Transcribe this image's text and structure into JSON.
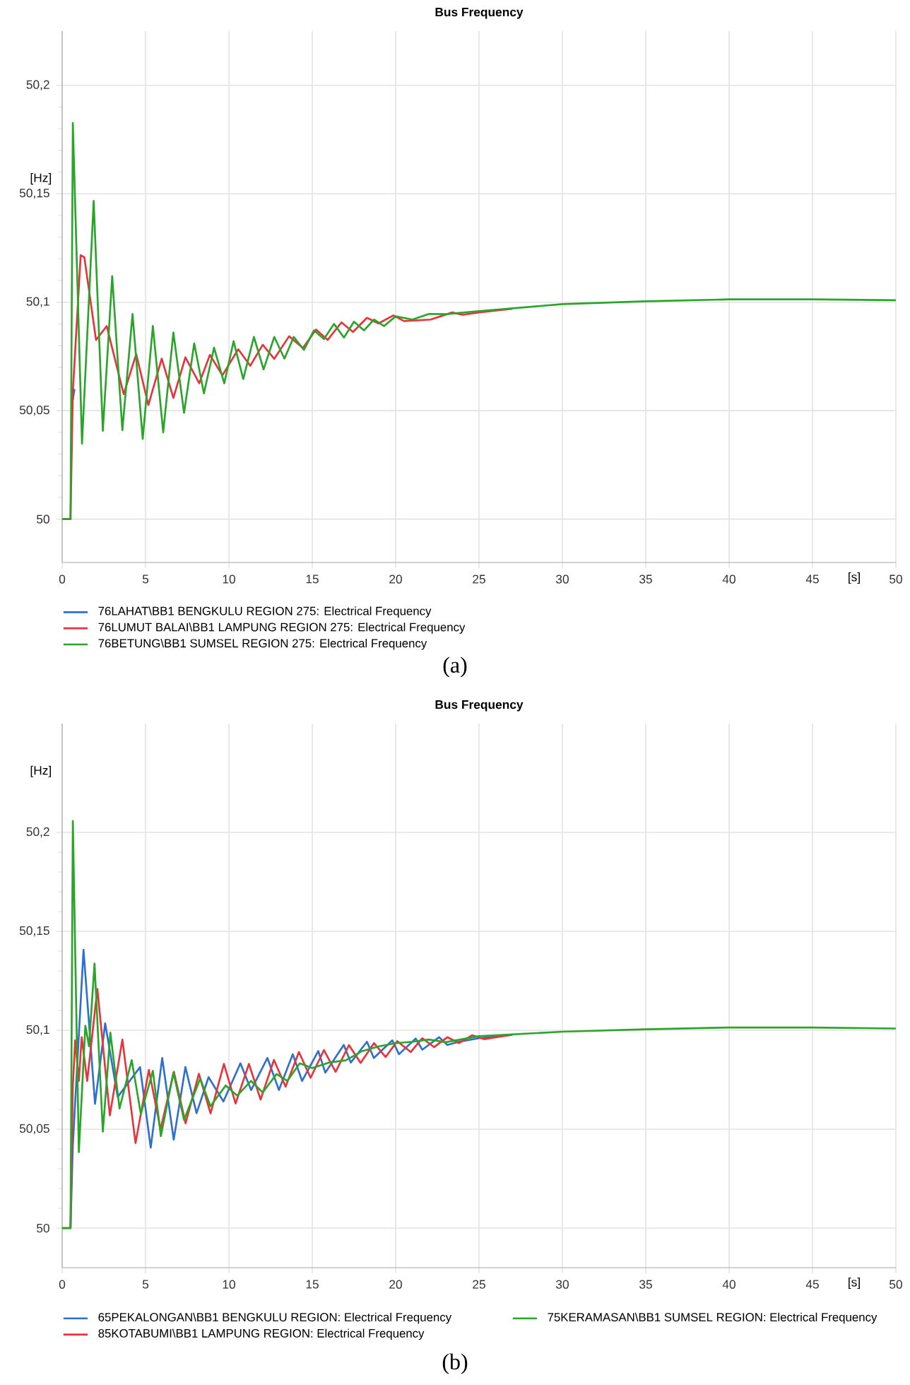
{
  "chart_data": [
    {
      "type": "line",
      "title": "Bus Frequency",
      "xlabel": "[s]",
      "ylabel": "[Hz]",
      "annotations": [
        "(a)"
      ],
      "xlim": [
        0,
        50
      ],
      "xticks": [
        0,
        5,
        10,
        15,
        20,
        25,
        30,
        35,
        40,
        45,
        50
      ],
      "ylim": [
        49.98,
        50.225
      ],
      "yticks": [
        50,
        {
          "value": 50.05,
          "label": "50,05"
        },
        {
          "value": 50.1,
          "label": "50,1"
        },
        {
          "value": 50.15,
          "label": "50,15"
        },
        {
          "value": 50.2,
          "label": "50,2"
        }
      ],
      "grid": true,
      "legend": "bottom left",
      "series": [
        {
          "name": "76LAHAT\\BB1 BENGKULU REGION 275: Electrical Frequency",
          "color": "#2f6fd0",
          "x": [
            0.64,
            0.74
          ],
          "values": [
            50.055,
            50.06
          ]
        },
        {
          "name": "76LUMUT BALAI\\BB1 LAMPUNG REGION 275: Electrical Frequency",
          "color": "#e8333c",
          "x": [
            0,
            0.5,
            0.64,
            1.11,
            1.33,
            2.03,
            2.67,
            3.69,
            4.44,
            5.17,
            5.97,
            6.67,
            7.39,
            8.22,
            8.86,
            9.61,
            10.56,
            11.28,
            12.03,
            12.72,
            13.61,
            14.44,
            15.22,
            15.92,
            16.75,
            17.44,
            18.28,
            18.97,
            19.86,
            20.5,
            22.1,
            23.4,
            24,
            25,
            27
          ],
          "values": [
            50,
            50,
            50.0587,
            50.1217,
            50.1207,
            50.0826,
            50.089,
            50.0576,
            50.0761,
            50.0526,
            50.074,
            50.0559,
            50.0746,
            50.0626,
            50.0757,
            50.0663,
            50.0783,
            50.0707,
            50.0804,
            50.0739,
            50.0843,
            50.0789,
            50.0874,
            50.0826,
            50.0907,
            50.0863,
            50.0928,
            50.0902,
            50.0939,
            50.0913,
            50.092,
            50.0953,
            50.0942,
            50.0953,
            50.097
          ]
        },
        {
          "name": "76BETUNG\\BB1 SUMSEL REGION 275: Electrical Frequency",
          "color": "#2aa52a",
          "x": [
            0,
            0.5,
            0.64,
            1.19,
            1.89,
            2.44,
            3.0,
            3.61,
            4.22,
            4.83,
            5.44,
            6.06,
            6.67,
            7.31,
            7.92,
            8.5,
            9.11,
            9.72,
            10.28,
            10.86,
            11.5,
            12.08,
            12.72,
            13.33,
            13.89,
            14.5,
            15.1,
            15.7,
            16.3,
            16.9,
            17.5,
            18.1,
            18.7,
            19.3,
            20,
            21,
            22,
            23,
            25,
            30,
            35,
            40,
            45,
            50
          ],
          "values": [
            50,
            50,
            50.1826,
            50.0348,
            50.1467,
            50.0407,
            50.112,
            50.041,
            50.0946,
            50.037,
            50.089,
            50.04,
            50.086,
            50.049,
            50.081,
            50.058,
            50.079,
            50.0626,
            50.082,
            50.0646,
            50.084,
            50.069,
            50.084,
            50.074,
            50.084,
            50.078,
            50.087,
            50.083,
            50.09,
            50.0837,
            50.091,
            50.087,
            50.092,
            50.089,
            50.0935,
            50.092,
            50.0946,
            50.0945,
            50.0959,
            50.0991,
            50.1004,
            50.1013,
            50.1013,
            50.1009
          ]
        }
      ]
    },
    {
      "type": "line",
      "title": "Bus Frequency",
      "xlabel": "[s]",
      "ylabel": "[Hz]",
      "annotations": [
        "(b)"
      ],
      "xlim": [
        0,
        50
      ],
      "xticks": [
        0,
        5,
        10,
        15,
        20,
        25,
        30,
        35,
        40,
        45,
        50
      ],
      "ylim": [
        49.98,
        50.255
      ],
      "yticks": [
        50,
        {
          "value": 50.05,
          "label": "50,05"
        },
        {
          "value": 50.1,
          "label": "50,1"
        },
        {
          "value": 50.15,
          "label": "50,15"
        },
        {
          "value": 50.2,
          "label": "50,2"
        }
      ],
      "grid": true,
      "legend": "bottom",
      "series": [
        {
          "name": "65PEKALONGAN\\BB1 BENGKULU REGION: Electrical Frequency",
          "color": "#2f6fd0",
          "x": [
            0,
            0.5,
            0.64,
            1.28,
            1.97,
            2.58,
            3.33,
            4.67,
            5.31,
            6.0,
            6.69,
            7.39,
            8.06,
            8.78,
            9.67,
            10.69,
            11.33,
            12.31,
            13.0,
            13.83,
            14.39,
            15.36,
            15.78,
            16.89,
            17.31,
            18.28,
            18.69,
            19.8,
            20.2,
            21.2,
            21.6,
            22.6,
            23.1,
            23.8,
            25,
            27
          ],
          "values": [
            50,
            50,
            50.042,
            50.1407,
            50.0628,
            50.1035,
            50.0663,
            50.0814,
            50.0407,
            50.086,
            50.0447,
            50.0814,
            50.0581,
            50.0763,
            50.064,
            50.0833,
            50.0698,
            50.086,
            50.0698,
            50.0879,
            50.0744,
            50.0895,
            50.0786,
            50.0926,
            50.0837,
            50.0942,
            50.086,
            50.0949,
            50.0879,
            50.0958,
            50.0902,
            50.0965,
            50.0926,
            50.0942,
            50.096,
            50.0977
          ]
        },
        {
          "name": "85KOTABUMI\\BB1 LAMPUNG REGION: Electrical Frequency",
          "color": "#e8333c",
          "x": [
            0,
            0.5,
            0.64,
            0.78,
            1.0,
            1.17,
            1.5,
            2.11,
            2.86,
            3.61,
            4.4,
            5.2,
            5.9,
            6.7,
            7.4,
            8.2,
            8.9,
            9.7,
            10.4,
            11.2,
            11.9,
            12.7,
            13.4,
            14.2,
            14.9,
            15.7,
            16.4,
            17.2,
            17.9,
            18.7,
            19.4,
            20.1,
            20.9,
            21.6,
            22.3,
            23.1,
            23.8,
            24.6,
            25.3,
            27
          ],
          "values": [
            50,
            50,
            50.072,
            50.095,
            50.0744,
            50.0965,
            50.0744,
            50.1209,
            50.057,
            50.0953,
            50.043,
            50.08,
            50.05,
            50.079,
            50.053,
            50.078,
            50.058,
            50.083,
            50.063,
            50.083,
            50.065,
            50.085,
            50.0715,
            50.089,
            50.076,
            50.09,
            50.079,
            50.0925,
            50.0835,
            50.0935,
            50.0865,
            50.0945,
            50.089,
            50.096,
            50.0915,
            50.0965,
            50.0935,
            50.0975,
            50.0955,
            50.0978
          ]
        },
        {
          "name": "75KERAMASAN\\BB1 SUMSEL REGION: Electrical Frequency",
          "color": "#2aa52a",
          "x": [
            0,
            0.5,
            0.64,
            1.0,
            1.39,
            1.61,
            1.94,
            2.44,
            2.89,
            3.44,
            4.17,
            4.72,
            5.44,
            5.92,
            6.67,
            7.31,
            8.28,
            8.89,
            9.81,
            10.5,
            11.33,
            12.03,
            12.86,
            13.5,
            14.25,
            15.0,
            16,
            17,
            18,
            19,
            20,
            21,
            22,
            23,
            24,
            25,
            30,
            35,
            40,
            45,
            50
          ],
          "values": [
            50,
            50,
            50.2058,
            50.0384,
            50.1023,
            50.0919,
            50.1337,
            50.0488,
            50.0988,
            50.0605,
            50.0849,
            50.0577,
            50.0795,
            50.0465,
            50.0786,
            50.0547,
            50.0756,
            50.0616,
            50.0721,
            50.067,
            50.0744,
            50.0686,
            50.0779,
            50.0744,
            50.0833,
            50.0809,
            50.0837,
            50.0848,
            50.0895,
            50.0919,
            50.0935,
            50.0942,
            50.0953,
            50.094,
            50.0955,
            50.097,
            50.0993,
            50.1005,
            50.1014,
            50.1014,
            50.1009
          ]
        }
      ]
    }
  ]
}
